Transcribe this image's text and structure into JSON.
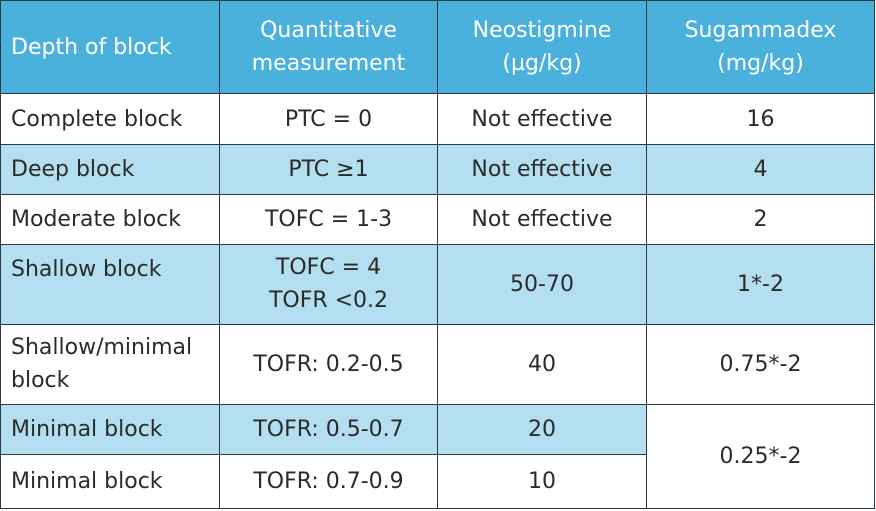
{
  "headers": [
    {
      "lines": [
        "Depth of block"
      ]
    },
    {
      "lines": [
        "Quantitative",
        "measurement"
      ]
    },
    {
      "lines": [
        "Neostigmine",
        "(µg/kg)"
      ]
    },
    {
      "lines": [
        "Sugammadex",
        "(mg/kg)"
      ]
    }
  ],
  "rows": [
    {
      "depth": [
        "Complete block"
      ],
      "measurement": [
        "PTC = 0"
      ],
      "neostigmine": "Not effective",
      "sugammadex": "16"
    },
    {
      "depth": [
        "Deep block"
      ],
      "measurement": [
        "PTC ≥1"
      ],
      "neostigmine": "Not effective",
      "sugammadex": "4"
    },
    {
      "depth": [
        "Moderate block"
      ],
      "measurement": [
        "TOFC = 1-3"
      ],
      "neostigmine": "Not effective",
      "sugammadex": "2"
    },
    {
      "depth": [
        "Shallow block"
      ],
      "measurement": [
        "TOFC = 4",
        "TOFR <0.2"
      ],
      "neostigmine": "50-70",
      "sugammadex": "1*-2"
    },
    {
      "depth": [
        "Shallow/minimal",
        "block"
      ],
      "measurement": [
        "TOFR: 0.2-0.5"
      ],
      "neostigmine": "40",
      "sugammadex": "0.75*-2"
    },
    {
      "depth": [
        "Minimal block"
      ],
      "measurement": [
        "TOFR: 0.5-0.7"
      ],
      "neostigmine": "20",
      "sugammadex": "0.25*-2"
    },
    {
      "depth": [
        "Minimal block"
      ],
      "measurement": [
        "TOFR: 0.7-0.9"
      ],
      "neostigmine": "10"
    }
  ],
  "colors": {
    "header": "#4ab0dc",
    "shaded_row": "#b3dff0",
    "border": "#2a3a44"
  }
}
